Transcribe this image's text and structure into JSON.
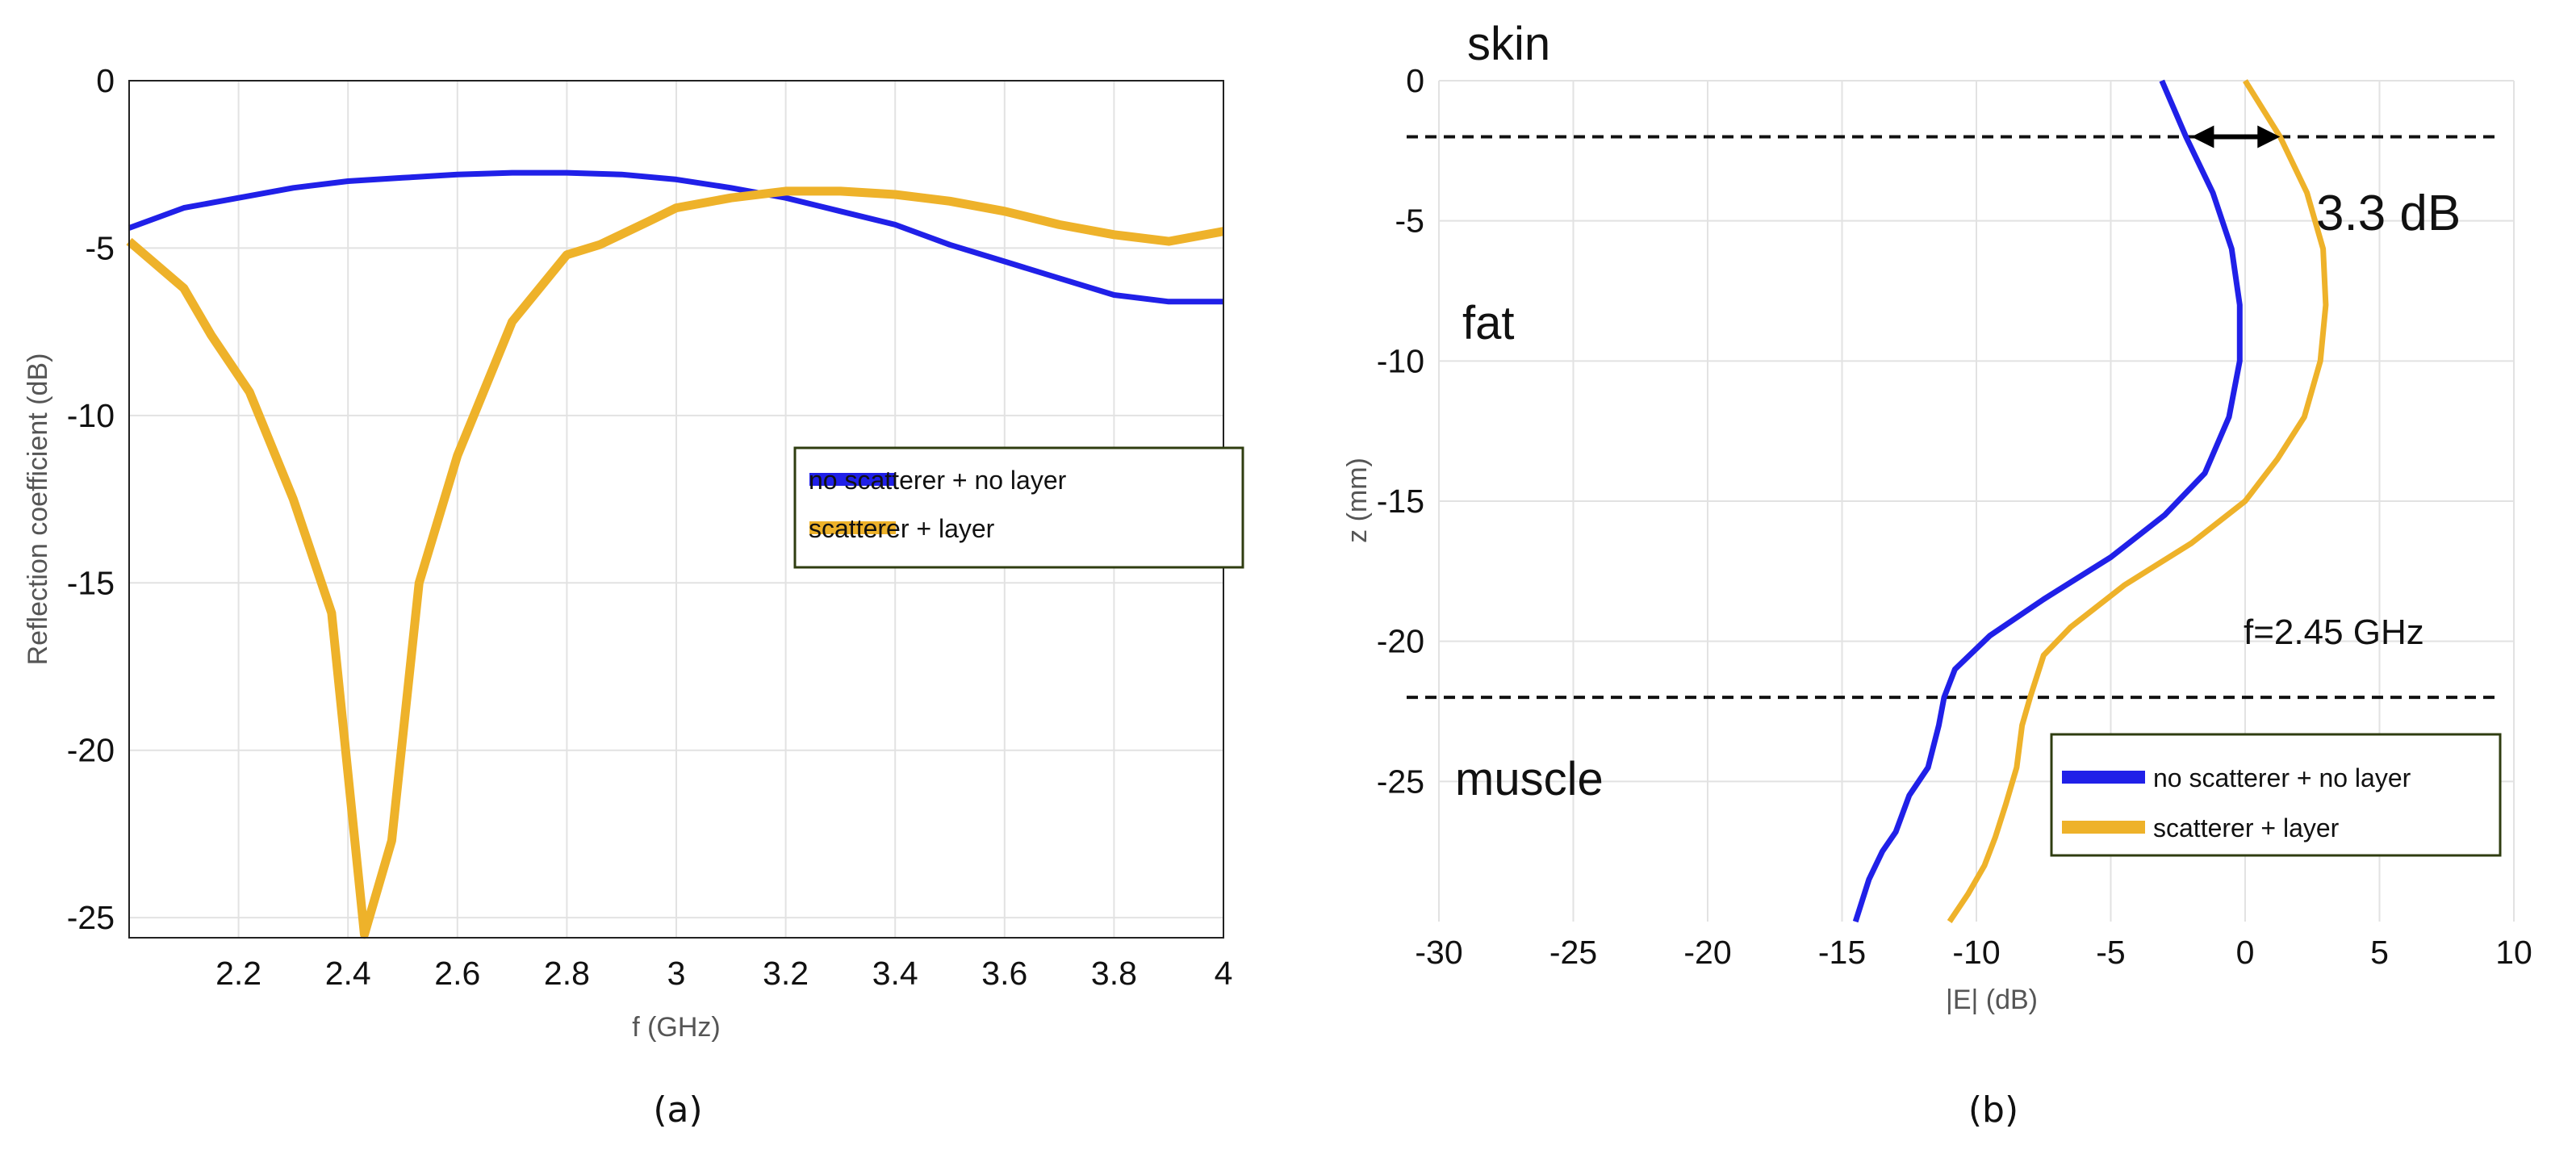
{
  "colors": {
    "blue": "#2020e8",
    "orange": "#eeb22a",
    "grid": "#e2e2e2",
    "legend_border": "#2f3d10"
  },
  "chart_data": [
    {
      "type": "line",
      "caption": "(a)",
      "xlabel": "f (GHz)",
      "ylabel": "Reflection coefficient (dB)",
      "xlim": [
        2.0,
        4.0
      ],
      "ylim": [
        -25.6,
        0
      ],
      "xticks": [
        2.2,
        2.4,
        2.6,
        2.8,
        3.0,
        3.2,
        3.4,
        3.6,
        3.8,
        4.0
      ],
      "xtick_labels": [
        "2.2",
        "2.4",
        "2.6",
        "2.8",
        "3",
        "3.2",
        "3.4",
        "3.6",
        "3.8",
        "4"
      ],
      "yticks": [
        0,
        -5,
        -10,
        -15,
        -20,
        -25
      ],
      "ytick_labels": [
        "0",
        "-5",
        "-10",
        "-15",
        "-20",
        "-25"
      ],
      "grid": true,
      "legend_position": "center-right",
      "series": [
        {
          "name": "no scatterer + no layer",
          "color": "#2020e8",
          "x": [
            2.0,
            2.1,
            2.2,
            2.3,
            2.4,
            2.5,
            2.6,
            2.7,
            2.8,
            2.9,
            3.0,
            3.1,
            3.2,
            3.3,
            3.4,
            3.5,
            3.6,
            3.7,
            3.8,
            3.9,
            4.0
          ],
          "y": [
            -4.4,
            -3.8,
            -3.5,
            -3.2,
            -3.0,
            -2.9,
            -2.8,
            -2.75,
            -2.75,
            -2.8,
            -2.95,
            -3.2,
            -3.5,
            -3.9,
            -4.3,
            -4.9,
            -5.4,
            -5.9,
            -6.4,
            -6.6,
            -6.6
          ]
        },
        {
          "name": "scatterer + layer",
          "color": "#eeb22a",
          "x": [
            2.0,
            2.1,
            2.15,
            2.22,
            2.3,
            2.37,
            2.43,
            2.48,
            2.53,
            2.6,
            2.7,
            2.8,
            2.86,
            2.95,
            3.0,
            3.1,
            3.2,
            3.3,
            3.4,
            3.5,
            3.6,
            3.7,
            3.8,
            3.9,
            4.0
          ],
          "y": [
            -4.8,
            -6.2,
            -7.6,
            -9.3,
            -12.5,
            -15.9,
            -25.5,
            -22.7,
            -15.0,
            -11.2,
            -7.2,
            -5.2,
            -4.9,
            -4.2,
            -3.8,
            -3.5,
            -3.3,
            -3.3,
            -3.4,
            -3.6,
            -3.9,
            -4.3,
            -4.6,
            -4.8,
            -4.5
          ]
        }
      ]
    },
    {
      "type": "line",
      "caption": "(b)",
      "xlabel": "|E| (dB)",
      "ylabel": "z (mm)",
      "xlim": [
        -30,
        10
      ],
      "ylim": [
        -30,
        0
      ],
      "xticks": [
        -30,
        -25,
        -20,
        -15,
        -10,
        -5,
        0,
        5,
        10
      ],
      "xtick_labels": [
        "-30",
        "-25",
        "-20",
        "-15",
        "-10",
        "-5",
        "0",
        "5",
        "10"
      ],
      "yticks": [
        0,
        -5,
        -10,
        -15,
        -20,
        -25
      ],
      "ytick_labels": [
        "0",
        "-5",
        "-10",
        "-15",
        "-20",
        "-25"
      ],
      "grid": true,
      "legend_position": "bottom-right",
      "layer_boundaries_mm": [
        -2,
        -22
      ],
      "regions": [
        "skin",
        "fat",
        "muscle"
      ],
      "annotations": {
        "delta": "3.3 dB",
        "frequency": "f=2.45 GHz"
      },
      "arrow_x": [
        -2.0,
        1.3
      ],
      "series": [
        {
          "name": "no scatterer + no layer",
          "color": "#2020e8",
          "x": [
            -3.1,
            -2.2,
            -1.2,
            -0.5,
            -0.2,
            -0.2,
            -0.6,
            -1.5,
            -3.0,
            -5.0,
            -7.5,
            -9.5,
            -10.8,
            -11.2,
            -11.4,
            -11.8,
            -12.5,
            -13.0,
            -13.5,
            -14.0,
            -14.5
          ],
          "y": [
            0,
            -2,
            -4,
            -6,
            -8,
            -10,
            -12,
            -14,
            -15.5,
            -17,
            -18.5,
            -19.8,
            -21,
            -22,
            -23,
            -24.5,
            -25.5,
            -26.8,
            -27.5,
            -28.5,
            -30
          ]
        },
        {
          "name": "scatterer + layer",
          "color": "#eeb22a",
          "x": [
            0.0,
            1.3,
            2.3,
            2.9,
            3.0,
            2.8,
            2.2,
            1.2,
            0.0,
            -2.0,
            -4.5,
            -6.5,
            -7.5,
            -8.0,
            -8.3,
            -8.5,
            -8.9,
            -9.3,
            -9.7,
            -10.3,
            -11.0
          ],
          "y": [
            0,
            -2,
            -4,
            -6,
            -8,
            -10,
            -12,
            -13.5,
            -15,
            -16.5,
            -18,
            -19.5,
            -20.5,
            -22,
            -23,
            -24.5,
            -25.8,
            -27,
            -28,
            -29,
            -30
          ]
        }
      ]
    }
  ]
}
